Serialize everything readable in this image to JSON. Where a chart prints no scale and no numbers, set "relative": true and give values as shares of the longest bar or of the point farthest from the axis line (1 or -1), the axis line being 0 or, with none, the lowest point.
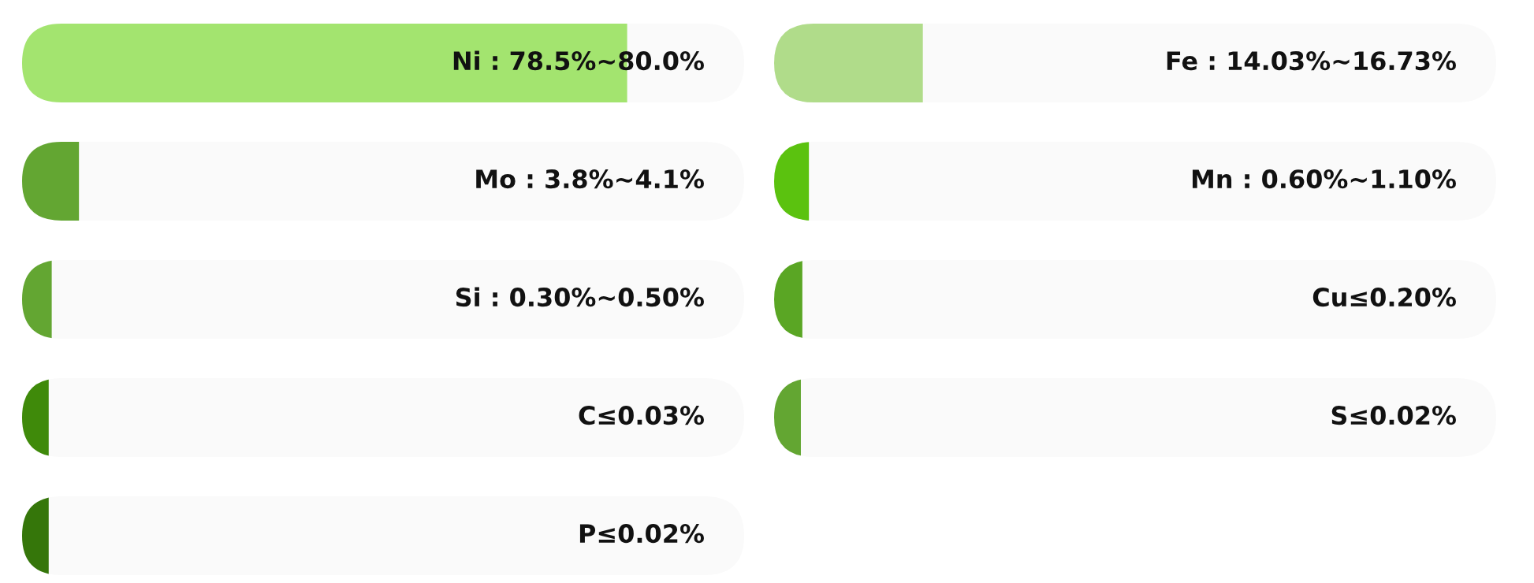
{
  "chart_data": [
    {
      "type": "bar",
      "orientation": "horizontal",
      "relative": true,
      "categories": [
        "Ni : 78.5%~80.0%",
        "Mo : 3.8%~4.1%",
        "Si : 0.30%~0.50%",
        "C≤0.03%",
        "P≤0.02%"
      ],
      "values": [
        1,
        0.094,
        0.049,
        0.044,
        0.044
      ],
      "colors": [
        "#a3e46f",
        "#63a632",
        "#63a632",
        "#3f8a0a",
        "#35760a"
      ]
    },
    {
      "type": "bar",
      "orientation": "horizontal",
      "relative": true,
      "categories": [
        "Fe : 14.03%~16.73%",
        "Mn : 0.60%~1.10%",
        "Cu≤0.20%",
        "S≤0.02%"
      ],
      "values": [
        1,
        0.234,
        0.19,
        0.18
      ],
      "colors": [
        "#b0dc8a",
        "#5bc20f",
        "#5aa624",
        "#63a632"
      ]
    }
  ]
}
